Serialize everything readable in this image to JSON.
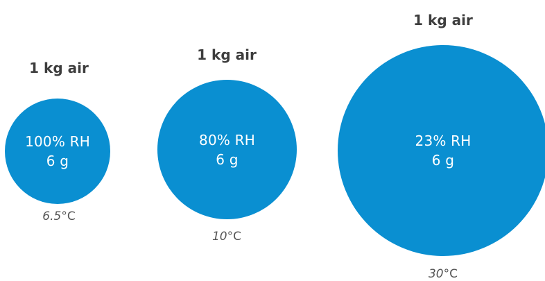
{
  "accent_color": "#0a8fd1",
  "groups": [
    {
      "label": "1 kg air",
      "rh": "100% RH",
      "moisture": "6 g",
      "temp_value": "6.5",
      "temp_unit": "°C"
    },
    {
      "label": "1 kg air",
      "rh": "80% RH",
      "moisture": "6 g",
      "temp_value": "10",
      "temp_unit": "°C"
    },
    {
      "label": "1 kg air",
      "rh": "23% RH",
      "moisture": "6 g",
      "temp_value": "30",
      "temp_unit": "°C"
    }
  ]
}
